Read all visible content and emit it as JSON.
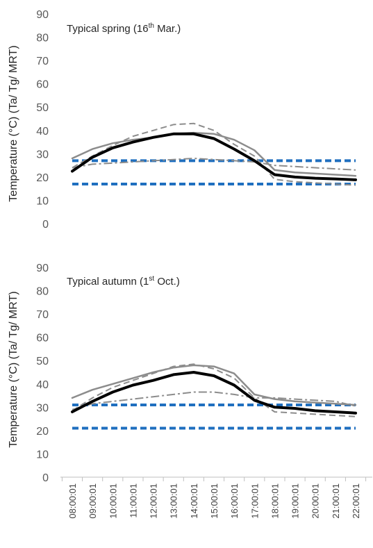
{
  "shared": {
    "ylabel": "Temperature (°C) (Ta/ Tg/ MRT)",
    "x": [
      "08:00:01",
      "09:00:01",
      "10:00:01",
      "11:00:01",
      "12:00:01",
      "13:00:01",
      "14:00:01",
      "15:00:01",
      "16:00:01",
      "17:00:01",
      "18:00:01",
      "19:00:01",
      "20:00:01",
      "21:00:01",
      "22:00:01"
    ],
    "colors": {
      "black": "#000000",
      "gray": "#8c8c8c",
      "blue": "#1f6fbf",
      "axis": "#bfbfbf"
    }
  },
  "chart_data": [
    {
      "type": "line",
      "title_main": "Typical spring (16",
      "title_sup": "th",
      "title_tail": " Mar.)",
      "ylim": [
        0,
        90
      ],
      "yticks": [
        0,
        10,
        20,
        30,
        40,
        50,
        60,
        70,
        80,
        90
      ],
      "grid": false,
      "series": [
        {
          "style": "black-thick",
          "values": [
            22.5,
            28.5,
            32.5,
            35.0,
            37.0,
            38.5,
            38.5,
            36.5,
            32.0,
            27.0,
            21.0,
            20.0,
            19.5,
            19.2,
            18.8
          ]
        },
        {
          "style": "gray-solid",
          "values": [
            28.0,
            32.0,
            34.5,
            36.0,
            37.0,
            38.5,
            39.0,
            38.5,
            36.0,
            31.5,
            23.0,
            22.0,
            21.5,
            21.0,
            20.5
          ]
        },
        {
          "style": "gray-dash",
          "values": [
            24.0,
            29.0,
            33.5,
            37.5,
            40.0,
            42.5,
            43.0,
            40.0,
            34.0,
            29.0,
            19.0,
            18.0,
            17.5,
            17.0,
            16.5
          ]
        },
        {
          "style": "gray-dashdot",
          "values": [
            24.0,
            25.5,
            26.0,
            26.5,
            27.0,
            27.5,
            28.0,
            27.5,
            27.0,
            26.5,
            25.0,
            24.5,
            24.0,
            23.5,
            23.0
          ]
        },
        {
          "style": "blue-upper",
          "values": [
            27,
            27,
            27,
            27,
            27,
            27,
            27,
            27,
            27,
            27,
            27,
            27,
            27,
            27,
            27
          ]
        },
        {
          "style": "blue-lower",
          "values": [
            17,
            17,
            17,
            17,
            17,
            17,
            17,
            17,
            17,
            17,
            17,
            17,
            17,
            17,
            17
          ]
        }
      ]
    },
    {
      "type": "line",
      "title_main": "Typical autumn (1",
      "title_sup": "st",
      "title_tail": " Oct.)",
      "ylim": [
        0,
        90
      ],
      "yticks": [
        0,
        10,
        20,
        30,
        40,
        50,
        60,
        70,
        80,
        90
      ],
      "grid": false,
      "series": [
        {
          "style": "black-thick",
          "values": [
            28.0,
            32.5,
            36.5,
            39.5,
            41.5,
            44.0,
            45.0,
            43.5,
            39.5,
            33.0,
            30.0,
            29.5,
            28.5,
            28.0,
            27.5
          ]
        },
        {
          "style": "gray-solid",
          "values": [
            34.0,
            37.5,
            40.0,
            42.5,
            45.0,
            47.0,
            48.0,
            47.5,
            44.5,
            35.5,
            33.5,
            32.5,
            32.0,
            31.5,
            31.0
          ]
        },
        {
          "style": "gray-dash",
          "values": [
            28.5,
            34.0,
            38.5,
            41.5,
            44.5,
            47.5,
            48.5,
            46.5,
            42.5,
            34.0,
            28.0,
            27.5,
            27.0,
            26.5,
            26.0
          ]
        },
        {
          "style": "gray-dashdot",
          "values": [
            29.0,
            31.5,
            32.5,
            33.5,
            34.5,
            35.5,
            36.5,
            36.5,
            35.5,
            34.0,
            34.0,
            33.5,
            33.0,
            32.5,
            30.5
          ]
        },
        {
          "style": "blue-upper",
          "values": [
            31,
            31,
            31,
            31,
            31,
            31,
            31,
            31,
            31,
            31,
            31,
            31,
            31,
            31,
            31
          ]
        },
        {
          "style": "blue-lower",
          "values": [
            21,
            21,
            21,
            21,
            21,
            21,
            21,
            21,
            21,
            21,
            21,
            21,
            21,
            21,
            21
          ]
        }
      ]
    }
  ]
}
